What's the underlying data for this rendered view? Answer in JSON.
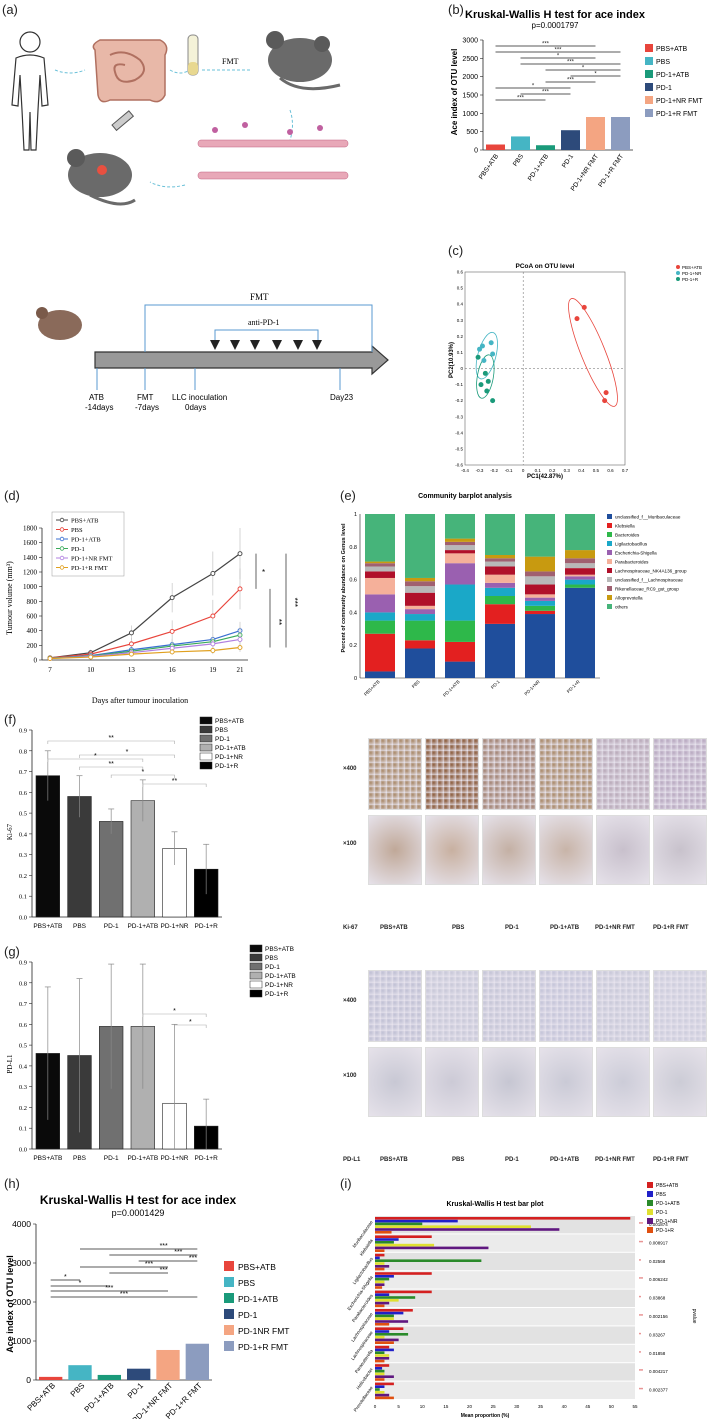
{
  "panel_labels": [
    "(a)",
    "(b)",
    "(c)",
    "(d)",
    "(e)",
    "(f)",
    "(g)",
    "(h)",
    "(i)"
  ],
  "panel_a": {
    "fmt_label": "FMT",
    "timeline_fmt": "FMT",
    "timeline_antipd1": "anti-PD-1",
    "events": [
      {
        "name": "ATB",
        "day": "-14days"
      },
      {
        "name": "FMT",
        "day": "-7days"
      },
      {
        "name": "LLC  inoculation",
        "day": "0days"
      },
      {
        "name": "Day23",
        "day": ""
      }
    ]
  },
  "panel_b": {
    "title": "Kruskal-Wallis H test for ace index",
    "pvalue": "p=0.0001797",
    "ylabel": "Ace index of OTU level",
    "sig_labels": [
      "***",
      "***",
      "*",
      "***",
      "*",
      "*",
      "***",
      "*",
      "***",
      "***"
    ],
    "legend": [
      "PBS+ATB",
      "PBS",
      "PD-1+ATB",
      "PD-1",
      "PD-1+NR FMT",
      "PD-1+R FMT"
    ]
  },
  "panel_c": {
    "title": "PCoA on OTU level",
    "xlabel": "PC1(42.87%)",
    "ylabel": "PC2(10.93%)",
    "legend": [
      "PBS+ATB",
      "PD-1+NR",
      "PD-1+R"
    ]
  },
  "panel_d": {
    "xlabel": "Days after tumour inoculation",
    "ylabel": "Tumour volume (mm³)",
    "sig": [
      "*",
      "**",
      "***"
    ],
    "legend": [
      "PBS+ATB",
      "PBS",
      "PD-1+ATB",
      "PD-1",
      "PD-1+NR FMT",
      "PD-1+R FMT"
    ]
  },
  "panel_e": {
    "title": "Community barplot analysis",
    "ylabel": "Percent of community abundance on Genus level",
    "legend": [
      "unclassified_f__Muribaculaceae",
      "Klebsiella",
      "Bacteroides",
      "Ligilactobacillus",
      "Escherichia-Shigella",
      "Parabacteroides",
      "Lachnospiraceae_NK4A136_group",
      "unclassified_f__Lachnospiraceae",
      "Rikenellaceae_RC9_gut_group",
      "Alloprevotella",
      "others"
    ],
    "groups": [
      "PBS+ATB",
      "PBS",
      "PD-1+ATB",
      "PD-1",
      "PD-1+NR",
      "PD-1+R"
    ]
  },
  "panel_f": {
    "ylabel": "Ki-67",
    "sig": [
      "**",
      "*",
      "*",
      "**",
      "*",
      "**"
    ],
    "legend": [
      "PBS+ATB",
      "PBS",
      "PD-1",
      "PD-1+ATB",
      "PD-1+NR",
      "PD-1+R"
    ],
    "ihc": {
      "mag_labels": [
        "×400",
        "×100"
      ],
      "stain": "Ki-67",
      "groups": [
        "PBS+ATB",
        "PBS",
        "PD-1",
        "PD-1+ATB",
        "PD-1+NR FMT",
        "PD-1+R FMT"
      ]
    }
  },
  "panel_g": {
    "ylabel": "PD-L1",
    "sig": [
      "*",
      "*"
    ],
    "legend": [
      "PBS+ATB",
      "PBS",
      "PD-1",
      "PD-1+ATB",
      "PD-1+NR",
      "PD-1+R"
    ],
    "ihc": {
      "mag_labels": [
        "×400",
        "×100"
      ],
      "stain": "PD-L1",
      "groups": [
        "PBS+ATB",
        "PBS",
        "PD-1",
        "PD-1+ATB",
        "PD-1+NR FMT",
        "PD-1+R FMT"
      ]
    }
  },
  "panel_h": {
    "title": "Kruskal-Wallis H test for ace index",
    "pvalue": "p=0.0001429",
    "ylabel": "Ace index of OTU level",
    "sig": [
      "***",
      "***",
      "***",
      "***",
      "***",
      "*",
      "*",
      "***",
      "***"
    ],
    "legend": [
      "PBS+ATB",
      "PBS",
      "PD-1+ATB",
      "PD-1",
      "PD-1NR FMT",
      "PD-1+R FMT"
    ]
  },
  "panel_i": {
    "title": "Kruskal-Wallis H test bar plot",
    "xlabel": "Mean proportion (%)",
    "side_label": "pvalue",
    "legend": [
      "PBS+ATB",
      "PBS",
      "PD-1+ATB",
      "PD-1",
      "PD-1+NR",
      "PD-1+R"
    ],
    "rows": [
      {
        "taxon": "Muribaculaceae",
        "stars": "**",
        "p": "0.001874"
      },
      {
        "taxon": "Klebsiella",
        "stars": "**",
        "p": "0.008917"
      },
      {
        "taxon": "Ligilactobacillus",
        "stars": "*",
        "p": "0.02568"
      },
      {
        "taxon": "Escherichia-Shigella",
        "stars": "**",
        "p": "0.006242"
      },
      {
        "taxon": "Parabacteroides",
        "stars": "*",
        "p": "0.03868"
      },
      {
        "taxon": "Lachnospiraceae",
        "stars": "**",
        "p": "0.002156"
      },
      {
        "taxon": "Lachnospiraceae",
        "stars": "*",
        "p": "0.03267"
      },
      {
        "taxon": "Parasutterella",
        "stars": "*",
        "p": "0.01858"
      },
      {
        "taxon": "Helicobacter",
        "stars": "**",
        "p": "0.004217"
      },
      {
        "taxon": "Prevotellaceae",
        "stars": "**",
        "p": "0.002377"
      }
    ]
  },
  "colors": {
    "PBS+ATB": "#e8453c",
    "PBS": "#45b5c4",
    "PD-1+ATB": "#1a9a7a",
    "PD-1": "#2d4a7a",
    "PD-1+NR FMT": "#f4a582",
    "PD-1+R FMT": "#8c9cbf"
  },
  "chart_data": [
    {
      "id": "b",
      "type": "bar",
      "categories": [
        "PBS+ATB",
        "PBS",
        "PD-1+ATB",
        "PD-1",
        "PD-1+NR FMT",
        "PD-1+R FMT"
      ],
      "values": [
        150,
        370,
        130,
        540,
        900,
        900
      ],
      "ylim": [
        0,
        3000
      ],
      "yticks": [
        0,
        500,
        1000,
        1500,
        2000,
        2500,
        3000
      ]
    },
    {
      "id": "c",
      "type": "scatter",
      "xlim": [
        -0.4,
        0.7
      ],
      "ylim": [
        -0.6,
        0.6
      ],
      "xticks": [
        -0.4,
        -0.3,
        -0.2,
        -0.1,
        0,
        0.1,
        0.2,
        0.3,
        0.4,
        0.5,
        0.6,
        0.7
      ],
      "yticks": [
        -0.6,
        -0.5,
        -0.4,
        -0.3,
        -0.2,
        -0.1,
        0,
        0.1,
        0.2,
        0.3,
        0.4,
        0.5,
        0.6
      ],
      "series": [
        {
          "name": "PBS+ATB",
          "color": "#e8453c",
          "points": [
            [
              0.42,
              0.38
            ],
            [
              0.37,
              0.31
            ],
            [
              0.57,
              -0.15
            ],
            [
              0.56,
              -0.2
            ]
          ]
        },
        {
          "name": "PD-1+NR",
          "color": "#45b5c4",
          "points": [
            [
              -0.3,
              0.12
            ],
            [
              -0.28,
              0.14
            ],
            [
              -0.22,
              0.16
            ],
            [
              -0.21,
              0.09
            ],
            [
              -0.27,
              0.05
            ]
          ]
        },
        {
          "name": "PD-1+R",
          "color": "#1a9a7a",
          "points": [
            [
              -0.31,
              0.07
            ],
            [
              -0.26,
              -0.03
            ],
            [
              -0.24,
              -0.08
            ],
            [
              -0.25,
              -0.14
            ],
            [
              -0.21,
              -0.2
            ],
            [
              -0.29,
              -0.1
            ]
          ]
        }
      ]
    },
    {
      "id": "d",
      "type": "line",
      "x": [
        7,
        10,
        13,
        16,
        19,
        21
      ],
      "ylim": [
        0,
        1800
      ],
      "yticks": [
        0,
        200,
        400,
        600,
        800,
        1000,
        1200,
        1400,
        1600,
        1800
      ],
      "series": [
        {
          "name": "PBS+ATB",
          "color": "#444444",
          "values": [
            30,
            100,
            370,
            850,
            1180,
            1450
          ],
          "err": [
            20,
            40,
            100,
            200,
            300,
            350
          ]
        },
        {
          "name": "PBS",
          "color": "#e8453c",
          "values": [
            30,
            80,
            220,
            390,
            600,
            970
          ],
          "err": [
            15,
            30,
            80,
            150,
            220,
            280
          ]
        },
        {
          "name": "PD-1+ATB",
          "color": "#3a6fd0",
          "values": [
            25,
            60,
            140,
            210,
            280,
            400
          ],
          "err": [
            10,
            25,
            50,
            80,
            100,
            120
          ]
        },
        {
          "name": "PD-1",
          "color": "#3aaa5a",
          "values": [
            25,
            55,
            120,
            190,
            250,
            340
          ],
          "err": [
            10,
            20,
            40,
            70,
            90,
            110
          ]
        },
        {
          "name": "PD-1+NR FMT",
          "color": "#b080e0",
          "values": [
            20,
            50,
            100,
            160,
            220,
            280
          ],
          "err": [
            10,
            20,
            40,
            60,
            80,
            100
          ]
        },
        {
          "name": "PD-1+R FMT",
          "color": "#e0a020",
          "values": [
            20,
            40,
            80,
            110,
            130,
            170
          ],
          "err": [
            8,
            15,
            30,
            40,
            50,
            60
          ]
        }
      ]
    },
    {
      "id": "e",
      "type": "bar",
      "stacked": true,
      "categories": [
        "PBS+ATB",
        "PBS",
        "PD-1+ATB",
        "PD-1",
        "PD-1+NR",
        "PD-1+R"
      ],
      "ylim": [
        0,
        1
      ],
      "yticks": [
        0,
        0.2,
        0.4,
        0.6,
        0.8,
        1
      ],
      "series": [
        {
          "name": "unclassified_f__Muribaculaceae",
          "color": "#1f4e9c",
          "values": [
            0.04,
            0.18,
            0.1,
            0.33,
            0.39,
            0.55
          ]
        },
        {
          "name": "Klebsiella",
          "color": "#e32020",
          "values": [
            0.23,
            0.05,
            0.12,
            0.12,
            0.02,
            0.0
          ]
        },
        {
          "name": "Bacteroides",
          "color": "#2eb84a",
          "values": [
            0.08,
            0.12,
            0.13,
            0.05,
            0.03,
            0.02
          ]
        },
        {
          "name": "Ligilactobacillus",
          "color": "#1aa8c8",
          "values": [
            0.05,
            0.04,
            0.22,
            0.05,
            0.03,
            0.03
          ]
        },
        {
          "name": "Escherichia-Shigella",
          "color": "#9a60b0",
          "values": [
            0.11,
            0.03,
            0.13,
            0.03,
            0.02,
            0.02
          ]
        },
        {
          "name": "Parabacteroides",
          "color": "#f5b09a",
          "values": [
            0.1,
            0.02,
            0.06,
            0.05,
            0.02,
            0.01
          ]
        },
        {
          "name": "Lachnospiraceae_NK4A136_group",
          "color": "#b0102a",
          "values": [
            0.04,
            0.08,
            0.02,
            0.05,
            0.06,
            0.04
          ]
        },
        {
          "name": "unclassified_f__Lachnospiraceae",
          "color": "#b8b8b8",
          "values": [
            0.03,
            0.04,
            0.03,
            0.03,
            0.05,
            0.03
          ]
        },
        {
          "name": "Rikenellaceae_RC9_gut_group",
          "color": "#a06070",
          "values": [
            0.02,
            0.03,
            0.02,
            0.02,
            0.03,
            0.03
          ]
        },
        {
          "name": "Alloprevotella",
          "color": "#c89a10",
          "values": [
            0.01,
            0.02,
            0.02,
            0.02,
            0.09,
            0.05
          ]
        },
        {
          "name": "others",
          "color": "#46b47a",
          "values": [
            0.29,
            0.39,
            0.15,
            0.25,
            0.26,
            0.22
          ]
        }
      ]
    },
    {
      "id": "f",
      "type": "bar",
      "categories": [
        "PBS+ATB",
        "PBS",
        "PD-1",
        "PD-1+ATB",
        "PD-1+NR",
        "PD-1+R"
      ],
      "values": [
        0.68,
        0.58,
        0.46,
        0.56,
        0.33,
        0.23
      ],
      "err": [
        0.12,
        0.1,
        0.06,
        0.1,
        0.08,
        0.12
      ],
      "fill": [
        "#0a0a0a",
        "#3a3a3a",
        "#707070",
        "#b0b0b0",
        "#ffffff",
        "#000000"
      ],
      "ylim": [
        0,
        0.9
      ],
      "yticks": [
        0,
        0.1,
        0.2,
        0.3,
        0.4,
        0.5,
        0.6,
        0.7,
        0.8,
        0.9
      ]
    },
    {
      "id": "g",
      "type": "bar",
      "categories": [
        "PBS+ATB",
        "PBS",
        "PD-1",
        "PD-1+ATB",
        "PD-1+NR",
        "PD-1+R"
      ],
      "values": [
        0.46,
        0.45,
        0.59,
        0.59,
        0.22,
        0.11
      ],
      "err": [
        0.32,
        0.37,
        0.3,
        0.3,
        0.38,
        0.13
      ],
      "fill": [
        "#0a0a0a",
        "#3a3a3a",
        "#707070",
        "#b0b0b0",
        "#ffffff",
        "#000000"
      ],
      "ylim": [
        0,
        0.9
      ],
      "yticks": [
        0,
        0.1,
        0.2,
        0.3,
        0.4,
        0.5,
        0.6,
        0.7,
        0.8,
        0.9
      ]
    },
    {
      "id": "h",
      "type": "bar",
      "categories": [
        "PBS+ATB",
        "PBS",
        "PD-1+ATB",
        "PD-1",
        "PD-1+NR FMT",
        "PD-1+R FMT"
      ],
      "values": [
        80,
        380,
        130,
        290,
        770,
        930
      ],
      "ylim": [
        0,
        4000
      ],
      "yticks": [
        0,
        1000,
        2000,
        3000,
        4000
      ]
    },
    {
      "id": "i",
      "type": "bar",
      "orientation": "horizontal",
      "xlim": [
        0,
        55
      ],
      "xticks": [
        0,
        5,
        10,
        15,
        20,
        25,
        30,
        35,
        40,
        45,
        50,
        55
      ],
      "series_colors": [
        "#d42020",
        "#2020c8",
        "#2a8a2a",
        "#e0e030",
        "#601880",
        "#e05010"
      ],
      "values": [
        [
          54,
          17.5,
          10,
          33,
          39,
          3.5
        ],
        [
          12,
          5,
          4,
          12.5,
          24,
          2
        ],
        [
          2,
          1,
          22.5,
          2,
          3,
          2
        ],
        [
          12,
          4,
          3,
          2,
          2,
          1.5
        ],
        [
          12,
          3,
          8.5,
          5,
          3,
          2
        ],
        [
          8,
          6,
          4,
          4,
          7,
          3
        ],
        [
          6,
          3,
          7,
          2,
          5,
          4
        ],
        [
          3,
          4,
          2,
          3,
          3,
          2
        ],
        [
          3,
          1.5,
          2,
          2,
          4,
          2
        ],
        [
          4,
          2,
          1,
          2,
          3,
          4
        ]
      ]
    }
  ]
}
